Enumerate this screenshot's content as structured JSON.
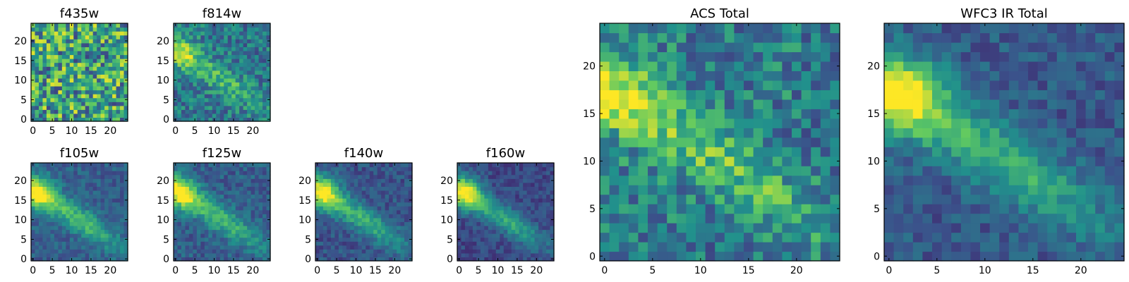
{
  "chart_data": [
    {
      "type": "heatmap",
      "title": "f435w",
      "size": 25,
      "seed": 11,
      "noise": 0.75,
      "base": 0.58,
      "ridge": 0.0,
      "blob": 0.0,
      "xticks": [
        0,
        5,
        10,
        15,
        20
      ],
      "yticks": [
        0,
        5,
        10,
        15,
        20
      ]
    },
    {
      "type": "heatmap",
      "title": "f814w",
      "size": 25,
      "seed": 23,
      "noise": 0.38,
      "base": 0.4,
      "ridge": 0.28,
      "blob": 0.25,
      "xticks": [
        0,
        5,
        10,
        15,
        20
      ],
      "yticks": [
        0,
        5,
        10,
        15,
        20
      ]
    },
    {
      "type": "heatmap",
      "title": "f105w",
      "size": 25,
      "seed": 31,
      "noise": 0.2,
      "base": 0.3,
      "ridge": 0.38,
      "blob": 0.42,
      "xticks": [
        0,
        5,
        10,
        15,
        20
      ],
      "yticks": [
        0,
        5,
        10,
        15,
        20
      ]
    },
    {
      "type": "heatmap",
      "title": "f125w",
      "size": 25,
      "seed": 37,
      "noise": 0.22,
      "base": 0.3,
      "ridge": 0.37,
      "blob": 0.42,
      "xticks": [
        0,
        5,
        10,
        15,
        20
      ],
      "yticks": [
        0,
        5,
        10,
        15,
        20
      ]
    },
    {
      "type": "heatmap",
      "title": "f140w",
      "size": 25,
      "seed": 41,
      "noise": 0.2,
      "base": 0.26,
      "ridge": 0.38,
      "blob": 0.45,
      "xticks": [
        0,
        5,
        10,
        15,
        20
      ],
      "yticks": [
        0,
        5,
        10,
        15,
        20
      ]
    },
    {
      "type": "heatmap",
      "title": "f160w",
      "size": 25,
      "seed": 43,
      "noise": 0.18,
      "base": 0.22,
      "ridge": 0.38,
      "blob": 0.48,
      "xticks": [
        0,
        5,
        10,
        15,
        20
      ],
      "yticks": [
        0,
        5,
        10,
        15,
        20
      ]
    },
    {
      "type": "heatmap",
      "title": "ACS Total",
      "size": 25,
      "seed": 53,
      "noise": 0.42,
      "base": 0.42,
      "ridge": 0.3,
      "blob": 0.28,
      "xticks": [
        0,
        5,
        10,
        15,
        20
      ],
      "yticks": [
        0,
        5,
        10,
        15,
        20
      ]
    },
    {
      "type": "heatmap",
      "title": "WFC3 IR Total",
      "size": 25,
      "seed": 61,
      "noise": 0.22,
      "base": 0.28,
      "ridge": 0.37,
      "blob": 0.45,
      "xticks": [
        0,
        5,
        10,
        15,
        20
      ],
      "yticks": [
        0,
        5,
        10,
        15,
        20
      ]
    }
  ],
  "colormap": [
    "#440154",
    "#3b528b",
    "#21918c",
    "#5ec962",
    "#fde725"
  ]
}
